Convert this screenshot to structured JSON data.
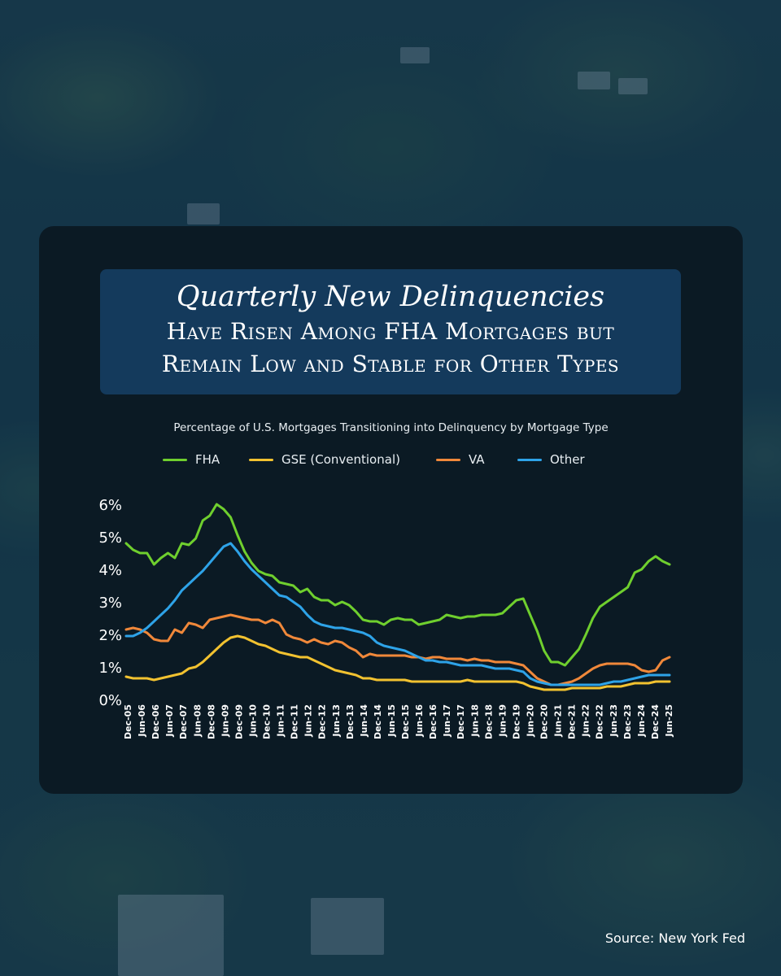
{
  "title": {
    "line1": "Quarterly New Delinquencies",
    "line2": "Have Risen Among FHA Mortgages but",
    "line3": "Remain Low and Stable for Other Types"
  },
  "source": "Source: New York Fed",
  "colors": {
    "FHA": "#6fcf2e",
    "GSE": "#f2c230",
    "VA": "#f0883a",
    "Other": "#2ea3e8",
    "card": "#0b1a24",
    "title_box": "#143a5c"
  },
  "chart_data": {
    "type": "line",
    "title": "Percentage of U.S. Mortgages Transitioning into Delinquency by Mortgage Type",
    "xlabel": "",
    "ylabel": "",
    "ylim": [
      0,
      6
    ],
    "yticks": [
      "0%",
      "1%",
      "2%",
      "3%",
      "4%",
      "5%",
      "6%"
    ],
    "legend_position": "top",
    "grid": false,
    "x_tick_labels": [
      "Dec-05",
      "Jun-06",
      "Dec-06",
      "Jun-07",
      "Dec-07",
      "Jun-08",
      "Dec-08",
      "Jun-09",
      "Dec-09",
      "Jun-10",
      "Dec-10",
      "Jun-11",
      "Dec-11",
      "Jun-12",
      "Dec-12",
      "Jun-13",
      "Dec-13",
      "Jun-14",
      "Dec-14",
      "Jun-15",
      "Dec-15",
      "Jun-16",
      "Dec-16",
      "Jun-17",
      "Dec-17",
      "Jun-18",
      "Dec-18",
      "Jun-19",
      "Dec-19",
      "Jun-20",
      "Dec-20",
      "Jun-21",
      "Dec-21",
      "Jun-22",
      "Dec-22",
      "Jun-23",
      "Dec-23",
      "Jun-24",
      "Dec-24",
      "Jun-25"
    ],
    "series": [
      {
        "name": "FHA",
        "color": "#6fcf2e",
        "values": [
          4.8,
          4.6,
          4.5,
          4.5,
          4.15,
          4.35,
          4.5,
          4.35,
          4.8,
          4.75,
          4.95,
          5.5,
          5.65,
          6.0,
          5.85,
          5.6,
          5.05,
          4.55,
          4.2,
          3.95,
          3.85,
          3.8,
          3.6,
          3.55,
          3.5,
          3.3,
          3.4,
          3.15,
          3.05,
          3.05,
          2.9,
          3.0,
          2.9,
          2.7,
          2.45,
          2.4,
          2.4,
          2.3,
          2.45,
          2.5,
          2.45,
          2.45,
          2.3,
          2.35,
          2.4,
          2.45,
          2.6,
          2.55,
          2.5,
          2.55,
          2.55,
          2.6,
          2.6,
          2.6,
          2.65,
          2.85,
          3.05,
          3.1,
          2.6,
          2.1,
          1.5,
          1.15,
          1.15,
          1.05,
          1.3,
          1.55,
          2.0,
          2.5,
          2.85,
          3.0,
          3.15,
          3.3,
          3.45,
          3.9,
          4.0,
          4.25,
          4.4,
          4.25,
          4.15
        ]
      },
      {
        "name": "GSE (Conventional)",
        "color": "#f2c230",
        "values": [
          0.7,
          0.65,
          0.65,
          0.65,
          0.6,
          0.65,
          0.7,
          0.75,
          0.8,
          0.95,
          1.0,
          1.15,
          1.35,
          1.55,
          1.75,
          1.9,
          1.95,
          1.9,
          1.8,
          1.7,
          1.65,
          1.55,
          1.45,
          1.4,
          1.35,
          1.3,
          1.3,
          1.2,
          1.1,
          1.0,
          0.9,
          0.85,
          0.8,
          0.75,
          0.65,
          0.65,
          0.6,
          0.6,
          0.6,
          0.6,
          0.6,
          0.55,
          0.55,
          0.55,
          0.55,
          0.55,
          0.55,
          0.55,
          0.55,
          0.6,
          0.55,
          0.55,
          0.55,
          0.55,
          0.55,
          0.55,
          0.55,
          0.5,
          0.4,
          0.35,
          0.3,
          0.3,
          0.3,
          0.3,
          0.35,
          0.35,
          0.35,
          0.35,
          0.35,
          0.4,
          0.4,
          0.4,
          0.45,
          0.5,
          0.5,
          0.5,
          0.55,
          0.55,
          0.55
        ]
      },
      {
        "name": "VA",
        "color": "#f0883a",
        "values": [
          2.15,
          2.2,
          2.15,
          2.05,
          1.85,
          1.8,
          1.8,
          2.15,
          2.05,
          2.35,
          2.3,
          2.2,
          2.45,
          2.5,
          2.55,
          2.6,
          2.55,
          2.5,
          2.45,
          2.45,
          2.35,
          2.45,
          2.35,
          2.0,
          1.9,
          1.85,
          1.75,
          1.85,
          1.75,
          1.7,
          1.8,
          1.75,
          1.6,
          1.5,
          1.3,
          1.4,
          1.35,
          1.35,
          1.35,
          1.35,
          1.35,
          1.3,
          1.3,
          1.25,
          1.3,
          1.3,
          1.25,
          1.25,
          1.25,
          1.2,
          1.25,
          1.2,
          1.2,
          1.15,
          1.15,
          1.15,
          1.1,
          1.05,
          0.85,
          0.65,
          0.55,
          0.45,
          0.45,
          0.5,
          0.55,
          0.65,
          0.8,
          0.95,
          1.05,
          1.1,
          1.1,
          1.1,
          1.1,
          1.05,
          0.9,
          0.85,
          0.9,
          1.2,
          1.3
        ]
      },
      {
        "name": "Other",
        "color": "#2ea3e8",
        "values": [
          1.95,
          1.95,
          2.05,
          2.2,
          2.4,
          2.6,
          2.8,
          3.05,
          3.35,
          3.55,
          3.75,
          3.95,
          4.2,
          4.45,
          4.7,
          4.8,
          4.55,
          4.25,
          4.0,
          3.8,
          3.6,
          3.4,
          3.2,
          3.15,
          3.0,
          2.85,
          2.6,
          2.4,
          2.3,
          2.25,
          2.2,
          2.2,
          2.15,
          2.1,
          2.05,
          1.95,
          1.75,
          1.65,
          1.6,
          1.55,
          1.5,
          1.4,
          1.3,
          1.2,
          1.2,
          1.15,
          1.15,
          1.1,
          1.05,
          1.05,
          1.05,
          1.05,
          1.0,
          0.95,
          0.95,
          0.95,
          0.9,
          0.85,
          0.65,
          0.55,
          0.5,
          0.45,
          0.45,
          0.45,
          0.45,
          0.45,
          0.45,
          0.45,
          0.45,
          0.5,
          0.55,
          0.55,
          0.6,
          0.65,
          0.7,
          0.75,
          0.75,
          0.75,
          0.75
        ]
      }
    ]
  }
}
